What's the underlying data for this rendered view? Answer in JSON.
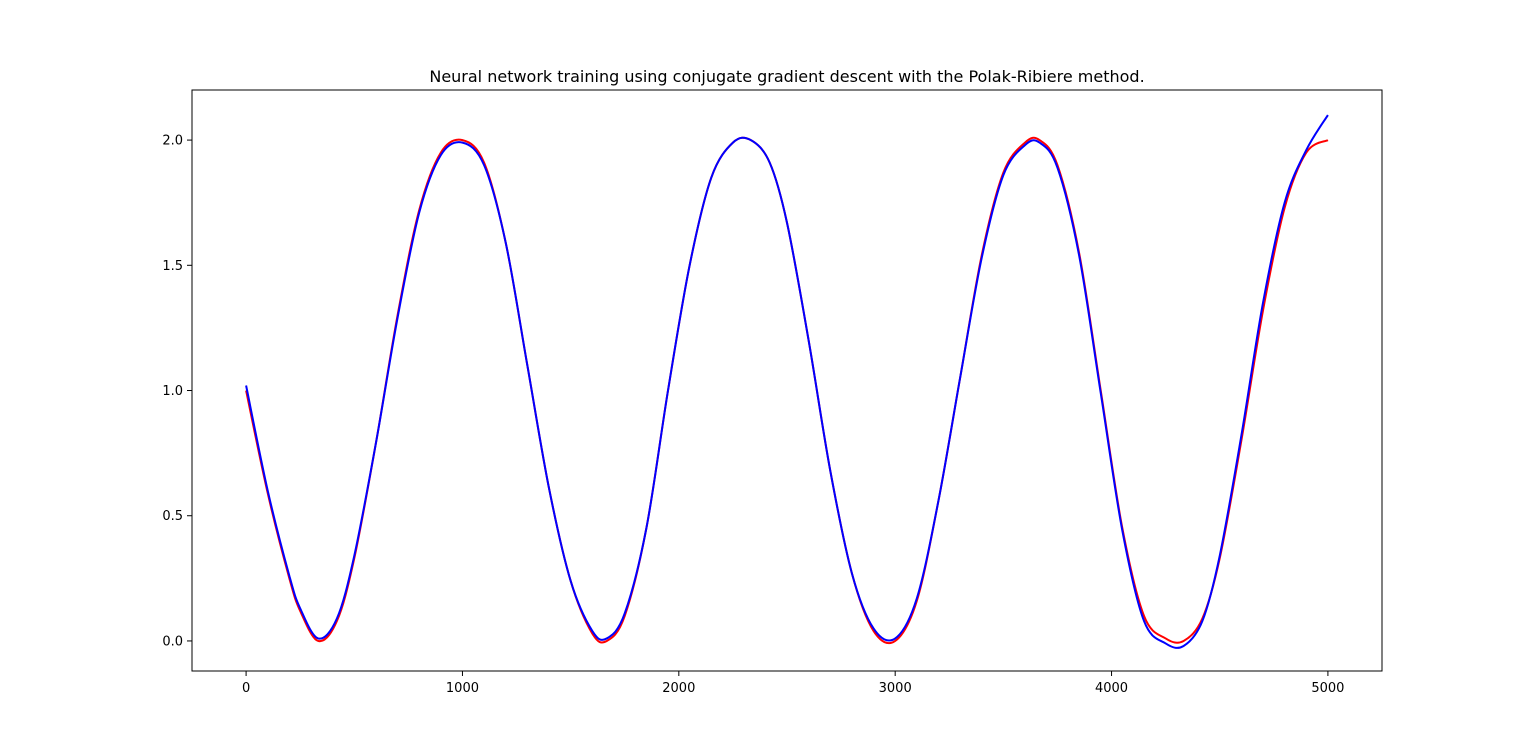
{
  "chart_data": {
    "type": "line",
    "title": "Neural network training using conjugate gradient descent with the Polak-Ribiere method.",
    "xlabel": "",
    "ylabel": "",
    "xlim": [
      -250,
      5250
    ],
    "ylim": [
      -0.12,
      2.2
    ],
    "x_ticks": [
      0,
      1000,
      2000,
      3000,
      4000,
      5000
    ],
    "x_tick_labels": [
      "0",
      "1000",
      "2000",
      "3000",
      "4000",
      "5000"
    ],
    "y_ticks": [
      0.0,
      0.5,
      1.0,
      1.5,
      2.0
    ],
    "y_tick_labels": [
      "0.0",
      "0.5",
      "1.0",
      "1.5",
      "2.0"
    ],
    "grid": false,
    "legend": "none",
    "series": [
      {
        "color": "#ff0000",
        "x": [
          0,
          100,
          200,
          250,
          333,
          420,
          500,
          600,
          700,
          800,
          900,
          1000,
          1100,
          1200,
          1300,
          1400,
          1500,
          1600,
          1667,
          1750,
          1850,
          1950,
          2050,
          2150,
          2250,
          2333,
          2420,
          2500,
          2600,
          2700,
          2800,
          2900,
          3000,
          3100,
          3200,
          3300,
          3400,
          3500,
          3600,
          3667,
          3750,
          3850,
          3950,
          4050,
          4150,
          4250,
          4333,
          4420,
          4500,
          4600,
          4700,
          4800,
          4900,
          5000
        ],
        "values": [
          1.0,
          0.59,
          0.25,
          0.12,
          0.0,
          0.08,
          0.33,
          0.79,
          1.3,
          1.72,
          1.95,
          2.0,
          1.91,
          1.59,
          1.1,
          0.61,
          0.24,
          0.03,
          0.0,
          0.1,
          0.45,
          1.0,
          1.5,
          1.85,
          1.99,
          2.0,
          1.91,
          1.67,
          1.2,
          0.68,
          0.27,
          0.04,
          0.0,
          0.16,
          0.56,
          1.05,
          1.54,
          1.87,
          1.99,
          2.0,
          1.9,
          1.55,
          1.0,
          0.45,
          0.1,
          0.01,
          0.0,
          0.09,
          0.33,
          0.8,
          1.32,
          1.73,
          1.95,
          2.0
        ]
      },
      {
        "color": "#0000ff",
        "x": [
          0,
          100,
          200,
          250,
          333,
          420,
          500,
          600,
          700,
          800,
          900,
          1000,
          1100,
          1200,
          1300,
          1400,
          1500,
          1600,
          1667,
          1750,
          1850,
          1950,
          2050,
          2150,
          2250,
          2333,
          2420,
          2500,
          2600,
          2700,
          2800,
          2900,
          3000,
          3100,
          3200,
          3300,
          3400,
          3500,
          3600,
          3667,
          3750,
          3850,
          3950,
          4050,
          4150,
          4250,
          4333,
          4420,
          4500,
          4600,
          4700,
          4800,
          4900,
          5000
        ],
        "values": [
          1.02,
          0.6,
          0.26,
          0.13,
          0.01,
          0.09,
          0.34,
          0.79,
          1.29,
          1.71,
          1.94,
          1.99,
          1.9,
          1.59,
          1.1,
          0.61,
          0.24,
          0.04,
          0.01,
          0.11,
          0.45,
          1.0,
          1.5,
          1.85,
          1.99,
          2.0,
          1.91,
          1.67,
          1.2,
          0.68,
          0.27,
          0.05,
          0.01,
          0.17,
          0.56,
          1.05,
          1.53,
          1.86,
          1.98,
          1.99,
          1.89,
          1.54,
          0.99,
          0.44,
          0.08,
          -0.01,
          -0.02,
          0.08,
          0.34,
          0.82,
          1.35,
          1.75,
          1.96,
          2.1
        ]
      }
    ]
  }
}
